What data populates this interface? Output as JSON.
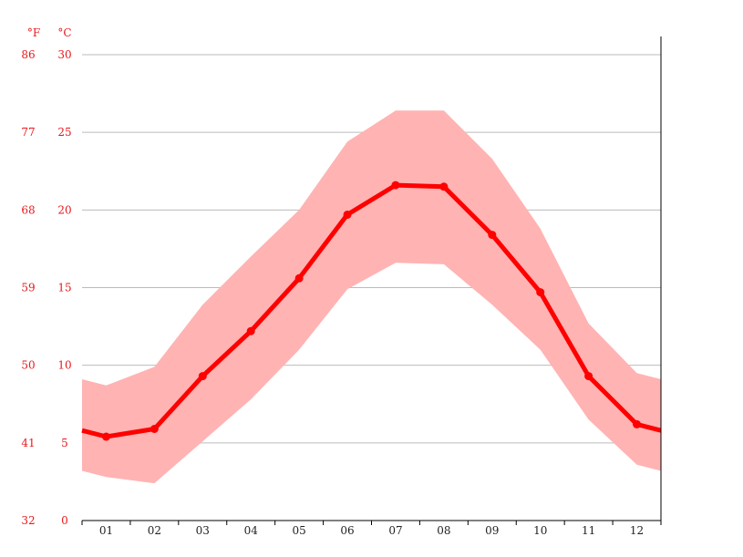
{
  "chart_data": {
    "type": "line",
    "title": "",
    "xlabel": "",
    "ylabel": "",
    "unit_f": "°F",
    "unit_c": "°C",
    "categories": [
      "01",
      "02",
      "03",
      "04",
      "05",
      "06",
      "07",
      "08",
      "09",
      "10",
      "11",
      "12"
    ],
    "series": [
      {
        "role": "mean",
        "values": [
          5.4,
          5.9,
          9.3,
          12.2,
          15.6,
          19.7,
          21.6,
          21.5,
          18.4,
          14.7,
          9.3,
          6.2
        ]
      },
      {
        "role": "band-min",
        "values": [
          2.8,
          2.4,
          5.1,
          7.8,
          11.0,
          14.9,
          16.6,
          16.5,
          13.9,
          11.0,
          6.5,
          3.6
        ]
      },
      {
        "role": "band-max",
        "values": [
          8.7,
          9.9,
          13.9,
          17.0,
          20.0,
          24.4,
          26.4,
          26.4,
          23.3,
          18.8,
          12.7,
          9.5
        ]
      }
    ],
    "edge": {
      "left": {
        "mean": 5.8,
        "min": 3.2,
        "max": 9.1
      },
      "right": {
        "mean": 5.8,
        "min": 3.2,
        "max": 9.1
      }
    },
    "ylim": [
      0,
      30
    ],
    "yticks_c": [
      "0",
      "5",
      "10",
      "15",
      "20",
      "25",
      "30"
    ],
    "yticks_f": [
      "32",
      "41",
      "50",
      "59",
      "68",
      "77",
      "86"
    ],
    "grid": true,
    "colors": {
      "line": "#ff0000",
      "band": "#ffb3b3",
      "axis_text": "#e8181b",
      "grid": "#bbbbbb"
    }
  }
}
